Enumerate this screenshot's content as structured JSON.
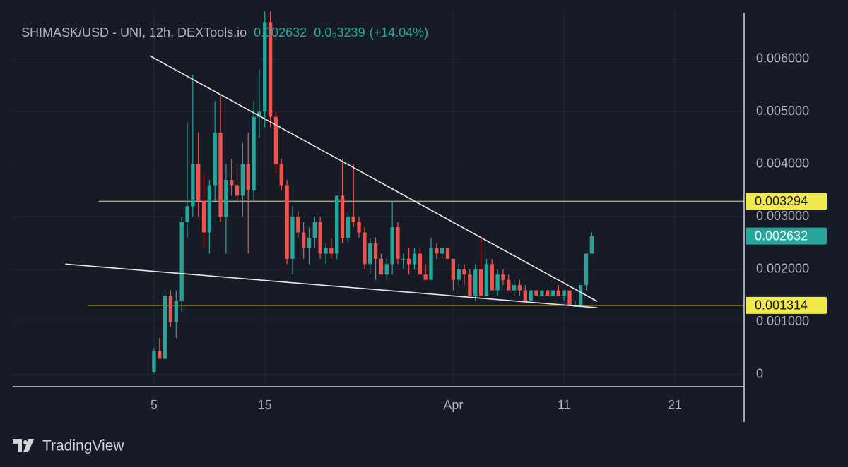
{
  "chart_data": {
    "type": "candlestick",
    "title": "SHIMASK/USD - UNI, 12h, DEXTools.io",
    "last_price": 0.002632,
    "change": "0.0₃3239",
    "change_pct": "(+14.04%)",
    "brand": "TradingView",
    "up_color": "#26a69a",
    "down_color": "#ef5350",
    "grid": true,
    "x": [
      "Mar 5 00:00",
      "Mar 5 12:00",
      "Mar 6 00:00",
      "Mar 6 12:00",
      "Mar 7 00:00",
      "Mar 7 12:00",
      "Mar 8 00:00",
      "Mar 8 12:00",
      "Mar 9 00:00",
      "Mar 9 12:00",
      "Mar 10 00:00",
      "Mar 10 12:00",
      "Mar 11 00:00",
      "Mar 11 12:00",
      "Mar 12 00:00",
      "Mar 12 12:00",
      "Mar 13 00:00",
      "Mar 13 12:00",
      "Mar 14 00:00",
      "Mar 14 12:00",
      "Mar 15 00:00",
      "Mar 15 12:00",
      "Mar 16 00:00",
      "Mar 16 12:00",
      "Mar 17 00:00",
      "Mar 17 12:00",
      "Mar 18 00:00",
      "Mar 18 12:00",
      "Mar 19 00:00",
      "Mar 19 12:00",
      "Mar 20 00:00",
      "Mar 20 12:00",
      "Mar 21 00:00",
      "Mar 21 12:00",
      "Mar 22 00:00",
      "Mar 22 12:00",
      "Mar 23 00:00",
      "Mar 23 12:00",
      "Mar 24 00:00",
      "Mar 24 12:00",
      "Mar 25 00:00",
      "Mar 25 12:00",
      "Mar 26 00:00",
      "Mar 26 12:00",
      "Mar 27 00:00",
      "Mar 27 12:00",
      "Mar 28 00:00",
      "Mar 28 12:00",
      "Mar 29 00:00",
      "Mar 29 12:00",
      "Mar 30 00:00",
      "Mar 30 12:00",
      "Mar 31 00:00",
      "Mar 31 12:00",
      "Apr 1 00:00",
      "Apr 1 12:00",
      "Apr 2 00:00",
      "Apr 2 12:00",
      "Apr 3 00:00",
      "Apr 3 12:00",
      "Apr 4 00:00",
      "Apr 4 12:00",
      "Apr 5 00:00",
      "Apr 5 12:00",
      "Apr 6 00:00",
      "Apr 6 12:00",
      "Apr 7 00:00",
      "Apr 7 12:00",
      "Apr 8 00:00",
      "Apr 8 12:00",
      "Apr 9 00:00",
      "Apr 9 12:00",
      "Apr 10 00:00",
      "Apr 10 12:00",
      "Apr 11 00:00",
      "Apr 11 12:00",
      "Apr 12 00:00",
      "Apr 12 12:00",
      "Apr 13 00:00",
      "Apr 13 12:00"
    ],
    "open": [
      5e-05,
      0.00045,
      0.0003,
      0.0015,
      0.001,
      0.0014,
      0.0029,
      0.0032,
      0.004,
      0.0033,
      0.0027,
      0.0036,
      0.0046,
      0.003,
      0.0037,
      0.0036,
      0.0034,
      0.004,
      0.0035,
      0.0049,
      0.005,
      0.0067,
      0.0049,
      0.004,
      0.0036,
      0.0022,
      0.003,
      0.0027,
      0.0024,
      0.0026,
      0.0029,
      0.0023,
      0.0024,
      0.0023,
      0.0034,
      0.0026,
      0.003,
      0.0029,
      0.0027,
      0.0021,
      0.0025,
      0.0022,
      0.0019,
      0.0021,
      0.0028,
      0.0022,
      0.0022,
      0.0021,
      0.0023,
      0.0019,
      0.0018,
      0.0024,
      0.0023,
      0.0024,
      0.0022,
      0.0018,
      0.002,
      0.0019,
      0.0015,
      0.002,
      0.0015,
      0.0021,
      0.0016,
      0.0019,
      0.0018,
      0.0016,
      0.0017,
      0.0016,
      0.0014,
      0.0016,
      0.0015,
      0.0016,
      0.0015,
      0.0016,
      0.0015,
      0.0016,
      0.0013,
      0.0013,
      0.0017,
      0.0023
    ],
    "high": [
      0.0005,
      0.0007,
      0.0016,
      0.0016,
      0.0016,
      0.003,
      0.0048,
      0.0057,
      0.0046,
      0.0038,
      0.0037,
      0.0052,
      0.0053,
      0.004,
      0.0041,
      0.004,
      0.0044,
      0.0046,
      0.0052,
      0.0058,
      0.0069,
      0.0069,
      0.005,
      0.0041,
      0.0037,
      0.0032,
      0.0031,
      0.0029,
      0.0028,
      0.003,
      0.003,
      0.0025,
      0.0026,
      0.0034,
      0.0041,
      0.0031,
      0.004,
      0.003,
      0.0028,
      0.0026,
      0.0026,
      0.0023,
      0.0022,
      0.0033,
      0.0029,
      0.0023,
      0.0024,
      0.0024,
      0.0024,
      0.0021,
      0.0026,
      0.0025,
      0.0024,
      0.0024,
      0.0022,
      0.0021,
      0.0021,
      0.002,
      0.0021,
      0.0026,
      0.0022,
      0.0022,
      0.002,
      0.002,
      0.0019,
      0.0018,
      0.0018,
      0.0017,
      0.0016,
      0.0016,
      0.0016,
      0.0016,
      0.0016,
      0.0017,
      0.0016,
      0.0016,
      0.0014,
      0.0017,
      0.0023,
      0.0027
    ],
    "low": [
      2e-05,
      0.0003,
      0.0003,
      0.0009,
      0.0007,
      0.0012,
      0.0026,
      0.003,
      0.003,
      0.0024,
      0.0023,
      0.0033,
      0.0029,
      0.0023,
      0.0034,
      0.0033,
      0.003,
      0.0023,
      0.0033,
      0.0045,
      0.0047,
      0.0047,
      0.0038,
      0.0035,
      0.0021,
      0.0019,
      0.0026,
      0.0022,
      0.0021,
      0.0024,
      0.0022,
      0.0021,
      0.0022,
      0.0022,
      0.0025,
      0.0025,
      0.0028,
      0.0026,
      0.002,
      0.0019,
      0.0018,
      0.0019,
      0.0018,
      0.0019,
      0.0021,
      0.002,
      0.0019,
      0.002,
      0.0019,
      0.0018,
      0.0018,
      0.0022,
      0.0022,
      0.0022,
      0.0016,
      0.0017,
      0.0017,
      0.0015,
      0.0014,
      0.0015,
      0.0015,
      0.0016,
      0.0015,
      0.0017,
      0.0016,
      0.0015,
      0.0015,
      0.0014,
      0.0014,
      0.0015,
      0.0015,
      0.0015,
      0.0015,
      0.0015,
      0.0014,
      0.0013,
      0.0013,
      0.0013,
      0.0016,
      0.0023
    ],
    "close": [
      0.00045,
      0.0003,
      0.0015,
      0.001,
      0.0014,
      0.0029,
      0.0032,
      0.004,
      0.0033,
      0.0027,
      0.0036,
      0.0046,
      0.003,
      0.0037,
      0.0036,
      0.0034,
      0.004,
      0.0035,
      0.0049,
      0.005,
      0.0067,
      0.0049,
      0.004,
      0.0036,
      0.0022,
      0.003,
      0.0027,
      0.0024,
      0.0026,
      0.0029,
      0.0023,
      0.0024,
      0.0023,
      0.0034,
      0.0026,
      0.003,
      0.0029,
      0.0027,
      0.0021,
      0.0025,
      0.0022,
      0.0019,
      0.0021,
      0.0028,
      0.0022,
      0.0022,
      0.0021,
      0.0023,
      0.0019,
      0.0018,
      0.0024,
      0.0023,
      0.0024,
      0.0022,
      0.0018,
      0.002,
      0.0019,
      0.0015,
      0.002,
      0.0015,
      0.0021,
      0.0016,
      0.0019,
      0.0018,
      0.0016,
      0.0017,
      0.0016,
      0.0014,
      0.0016,
      0.0015,
      0.0016,
      0.0015,
      0.0016,
      0.0015,
      0.0016,
      0.0013,
      0.0013,
      0.0017,
      0.0023,
      0.002632
    ],
    "xlim": [
      "Feb 20 06:00",
      "Apr 27 06:00"
    ],
    "xticks": [
      {
        "value": "Mar 5 00:00",
        "label": "5"
      },
      {
        "value": "Mar 15 00:00",
        "label": "15"
      },
      {
        "value": "Apr 1 00:00",
        "label": "Apr"
      },
      {
        "value": "Apr 11 00:00",
        "label": "11"
      },
      {
        "value": "Apr 21 00:00",
        "label": "21"
      }
    ],
    "ylim": [
      -0.00023,
      0.00688
    ],
    "yticks": [
      0,
      {
        "value": 0.001,
        "label": "0.001000"
      },
      {
        "value": 0.002,
        "label": "0.002000"
      },
      {
        "value": 0.003,
        "label": "0.003000"
      },
      {
        "value": 0.004,
        "label": "0.004000"
      },
      {
        "value": 0.005,
        "label": "0.005000"
      },
      {
        "value": 0.006,
        "label": "0.006000"
      }
    ],
    "hlines": [
      {
        "value": 0.003294,
        "start": "Feb 28 00:00",
        "color": "#b5a642"
      },
      {
        "value": 0.001314,
        "start": "Feb 27 00:00",
        "color": "#b5a642"
      }
    ],
    "trendlines": [
      {
        "x": [
          "Mar 4 15:00",
          "Apr 14 00:00"
        ],
        "y": [
          0.00606,
          0.00139
        ]
      },
      {
        "x": [
          "Feb 25 00:00",
          "Apr 14 00:00"
        ],
        "y": [
          0.0021,
          0.00127
        ]
      }
    ]
  }
}
